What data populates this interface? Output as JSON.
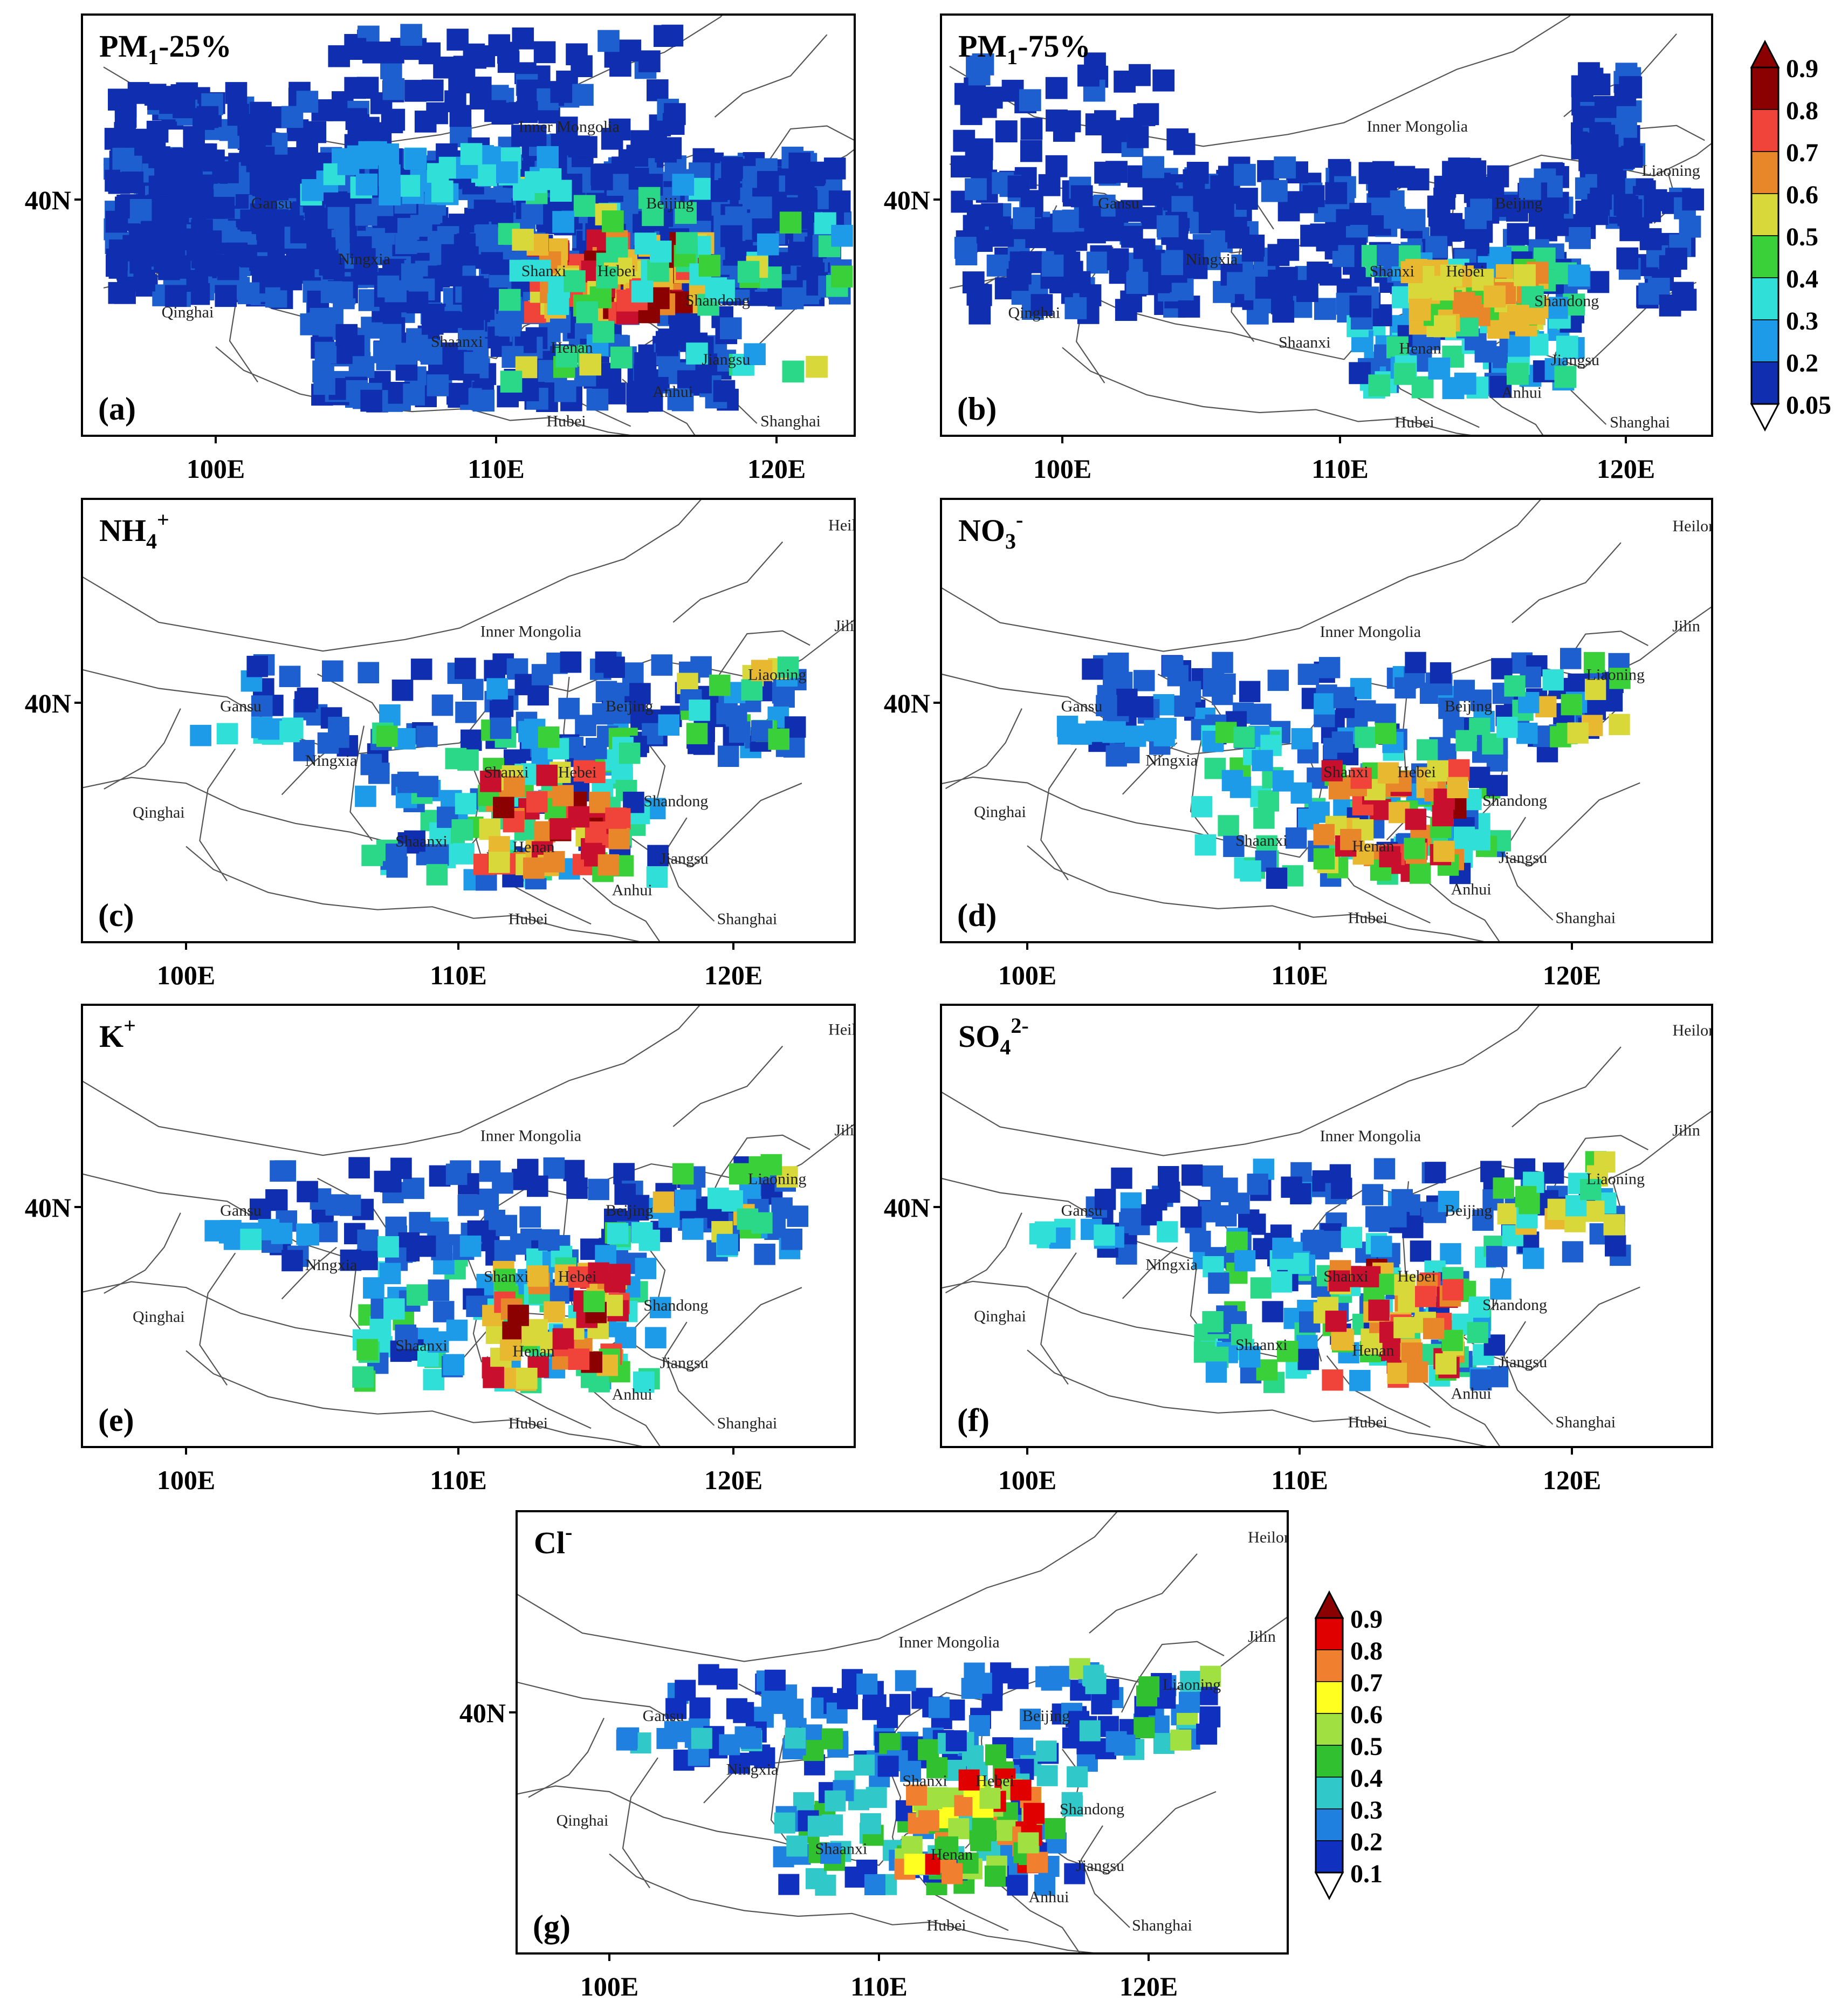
{
  "panels": [
    {
      "id": "a",
      "title": "PM",
      "sub": "1",
      "sup": "",
      "suffix": "-25%",
      "tag": "(a)",
      "labels": [
        "Inner Mongolia",
        "Beijing",
        "Gansu",
        "Ningxia",
        "Shanxi",
        "Hebei",
        "Shandong",
        "Qinghai",
        "Shaanxi",
        "Henan",
        "Jiangsu",
        "Anhui",
        "Hubei",
        "Shanghai"
      ]
    },
    {
      "id": "b",
      "title": "PM",
      "sub": "1",
      "sup": "",
      "suffix": "-75%",
      "tag": "(b)",
      "labels": [
        "Inner Mongolia",
        "Liaoning",
        "Gansu",
        "Beijing",
        "Ningxia",
        "Shanxi",
        "Hebei",
        "Qinghai",
        "Shandong",
        "Shaanxi",
        "Henan",
        "Jiangsu",
        "Anhui",
        "Shanghai",
        "Hubei"
      ]
    },
    {
      "id": "c",
      "title": "NH",
      "sub": "4",
      "sup": "+",
      "suffix": "",
      "tag": "(c)",
      "labels": [
        "Heilon",
        "Jilin",
        "Inner Mongolia",
        "Liaoning",
        "Gansu",
        "Beijing",
        "Ningxia",
        "Shanxi",
        "Hebei",
        "Qinghai",
        "Shandong",
        "Shaanxi",
        "Henan",
        "Jiangsu",
        "Anhui",
        "Hubei",
        "Shanghai"
      ]
    },
    {
      "id": "d",
      "title": "NO",
      "sub": "3",
      "sup": "-",
      "suffix": "",
      "tag": "(d)",
      "labels": [
        "Heilon",
        "Jilin",
        "Inner Mongolia",
        "Liaoning",
        "Gansu",
        "Beijing",
        "Ningxia",
        "Shanxi",
        "Hebei",
        "Qinghai",
        "Shandong",
        "Shaanxi",
        "Henan",
        "Jiangsu",
        "Anhui",
        "Hubei",
        "Shanghai"
      ]
    },
    {
      "id": "e",
      "title": "K",
      "sub": "",
      "sup": "+",
      "suffix": "",
      "tag": "(e)",
      "labels": [
        "Heilon",
        "Jilin",
        "Inner Mongolia",
        "Liaoning",
        "Gansu",
        "Beijing",
        "Ningxia",
        "Shanxi",
        "Hebei",
        "Qinghai",
        "Shandong",
        "Shaanxi",
        "Henan",
        "Jiangsu",
        "Anhui",
        "Hubei",
        "Shanghai"
      ]
    },
    {
      "id": "f",
      "title": "SO",
      "sub": "4",
      "sup": "2-",
      "suffix": "",
      "tag": "(f)",
      "labels": [
        "Heilon",
        "Jilin",
        "Inner Mongolia",
        "Liaoning",
        "Gansu",
        "Beijing",
        "Ningxia",
        "Shanxi",
        "Hebei",
        "Qinghai",
        "Shandong",
        "Shaanxi",
        "Henan",
        "Jiangsu",
        "Anhui",
        "Hubei",
        "Shanghai"
      ]
    },
    {
      "id": "g",
      "title": "Cl",
      "sub": "",
      "sup": "-",
      "suffix": "",
      "tag": "(g)",
      "labels": [
        "Heilon",
        "Jilin",
        "Inner Mongolia",
        "Liaoning",
        "Gansu",
        "Beijing",
        "Ningxia",
        "Shanxi",
        "Hebei",
        "Qinghai",
        "Shandong",
        "Shaanxi",
        "Henan",
        "Jiangsu",
        "Anhui",
        "Hubei",
        "Shanghai"
      ]
    }
  ],
  "axes": {
    "x_ticks": [
      "100E",
      "110E",
      "120E"
    ],
    "y_ticks": [
      "40N"
    ]
  },
  "colorbars": [
    {
      "id": "top",
      "labels": [
        "0.9",
        "0.8",
        "0.7",
        "0.6",
        "0.5",
        "0.4",
        "0.3",
        "0.2",
        "0.05"
      ]
    },
    {
      "id": "bottom",
      "labels": [
        "0.9",
        "0.8",
        "0.7",
        "0.6",
        "0.5",
        "0.4",
        "0.3",
        "0.2",
        "0.1"
      ]
    }
  ],
  "colors": {
    "scale": [
      "#8b0000",
      "#c8102e",
      "#f0443a",
      "#e8862a",
      "#e8b830",
      "#d8d83a",
      "#3ad03a",
      "#2ad888",
      "#30e0d8",
      "#1e9be8",
      "#1e5fd0",
      "#0f2fb0"
    ],
    "cl_scale": [
      "#e00000",
      "#f08030",
      "#ffff20",
      "#a0e040",
      "#30c030",
      "#30c8c8",
      "#2080e0",
      "#1030c0"
    ],
    "boundary": "#555555"
  }
}
